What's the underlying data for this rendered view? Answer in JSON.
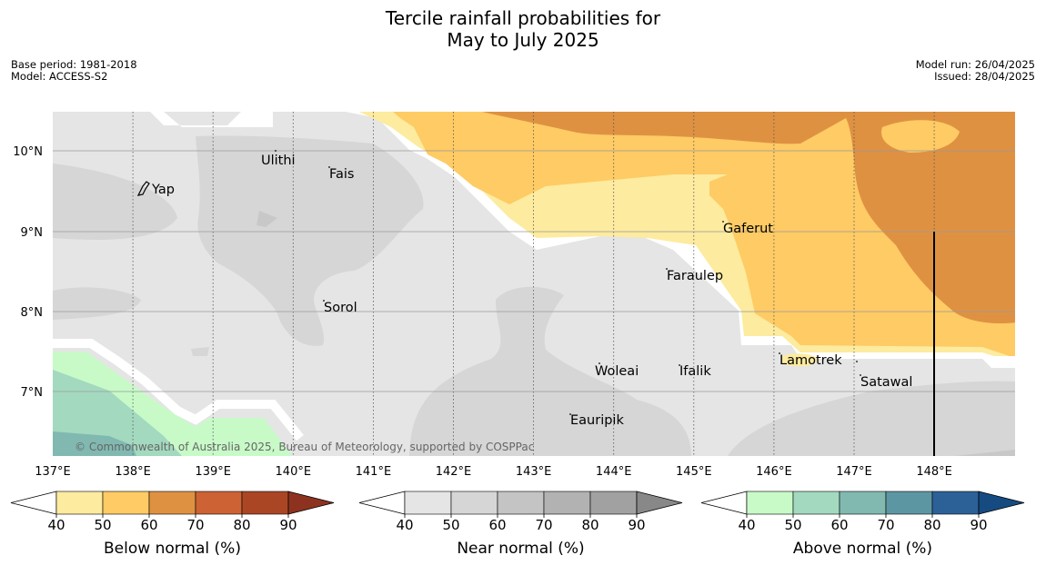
{
  "title": {
    "line1": "Tercile rainfall probabilities for",
    "line2": "May to July 2025"
  },
  "meta_left": {
    "base_period": "Base period: 1981-2018",
    "model": "Model: ACCESS-S2"
  },
  "meta_right": {
    "model_run": "Model run: 26/04/2025",
    "issued": "Issued: 28/04/2025"
  },
  "map": {
    "lon_ticks": [
      "137°E",
      "138°E",
      "139°E",
      "140°E",
      "141°E",
      "142°E",
      "143°E",
      "144°E",
      "145°E",
      "146°E",
      "147°E",
      "148°E"
    ],
    "lat_ticks": [
      "10°N",
      "9°N",
      "8°N",
      "7°N"
    ],
    "places": {
      "yap": "Yap",
      "ulithi": "Ulithi",
      "fais": "Fais",
      "gaferut": "Gaferut",
      "faraulep": "Faraulep",
      "sorol": "Sorol",
      "woleai": "Woleai",
      "ifalik": "Ifalik",
      "lamotrek": "Lamotrek",
      "satawal": "Satawal",
      "eauripik": "Eauripik"
    },
    "copyright": "© Commonwealth of Australia 2025, Bureau of Meteorology, supported by COSPPac",
    "colors": {
      "below": [
        "#fdeb9f",
        "#fecb64",
        "#df9142",
        "#cd6234",
        "#ab4625",
        "#8e3220"
      ],
      "near": [
        "#e5e5e5",
        "#d6d6d6",
        "#c4c4c4",
        "#b2b2b2",
        "#a1a1a1",
        "#888888"
      ],
      "above": [
        "#c8fac8",
        "#a3d9bf",
        "#81b9b1",
        "#5c96a2",
        "#2c6197",
        "#164b82"
      ]
    }
  },
  "colorbars": {
    "ticks": [
      "40",
      "50",
      "60",
      "70",
      "80",
      "90"
    ],
    "below_label": "Below normal (%)",
    "near_label": "Near normal (%)",
    "above_label": "Above normal (%)"
  }
}
